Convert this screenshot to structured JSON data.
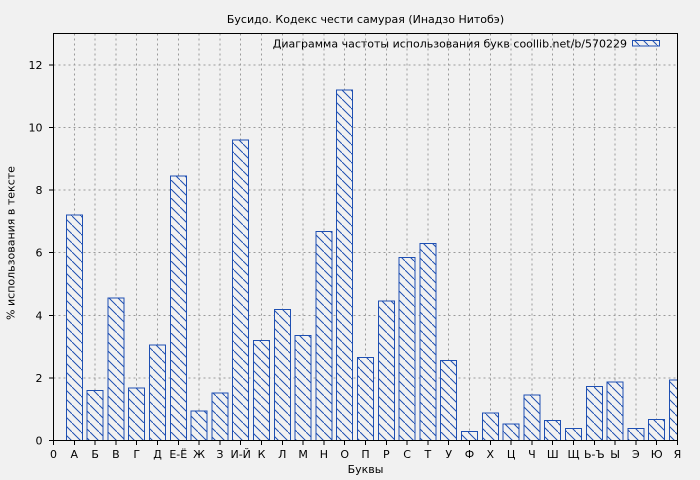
{
  "chart_data": {
    "type": "bar",
    "title": "Бусидо. Кодекс чести самурая (Инадзо Нитобэ)",
    "legend": "Диаграмма частоты использования букв coollib.net/b/570229",
    "legend_position": "top-right-inside",
    "xlabel": "Буквы",
    "ylabel": "% использования в тексте",
    "x_origin_label": "0",
    "categories": [
      "А",
      "Б",
      "В",
      "Г",
      "Д",
      "Е-Ё",
      "Ж",
      "З",
      "И-Й",
      "К",
      "Л",
      "М",
      "Н",
      "О",
      "П",
      "Р",
      "С",
      "Т",
      "У",
      "Ф",
      "Х",
      "Ц",
      "Ч",
      "Ш",
      "Щ",
      "Ь-Ъ",
      "Ы",
      "Э",
      "Ю",
      "Я"
    ],
    "values": [
      7.2,
      1.6,
      4.55,
      1.67,
      3.05,
      8.45,
      0.95,
      1.52,
      9.6,
      3.2,
      4.18,
      3.35,
      6.68,
      11.2,
      2.65,
      4.45,
      5.85,
      6.3,
      2.55,
      0.28,
      0.88,
      0.53,
      1.45,
      0.64,
      0.38,
      1.73,
      1.87,
      0.38,
      0.67,
      1.93
    ],
    "ylim": [
      0,
      13
    ],
    "yticks": [
      0,
      2,
      4,
      6,
      8,
      10,
      12
    ],
    "grid": true,
    "hatch": "diagonal-backslash",
    "colors": {
      "bar": "#1e4fb2",
      "grid": "#9a9a9a",
      "frame": "#000000",
      "text": "#000000",
      "background": "#f1f1f1"
    }
  }
}
